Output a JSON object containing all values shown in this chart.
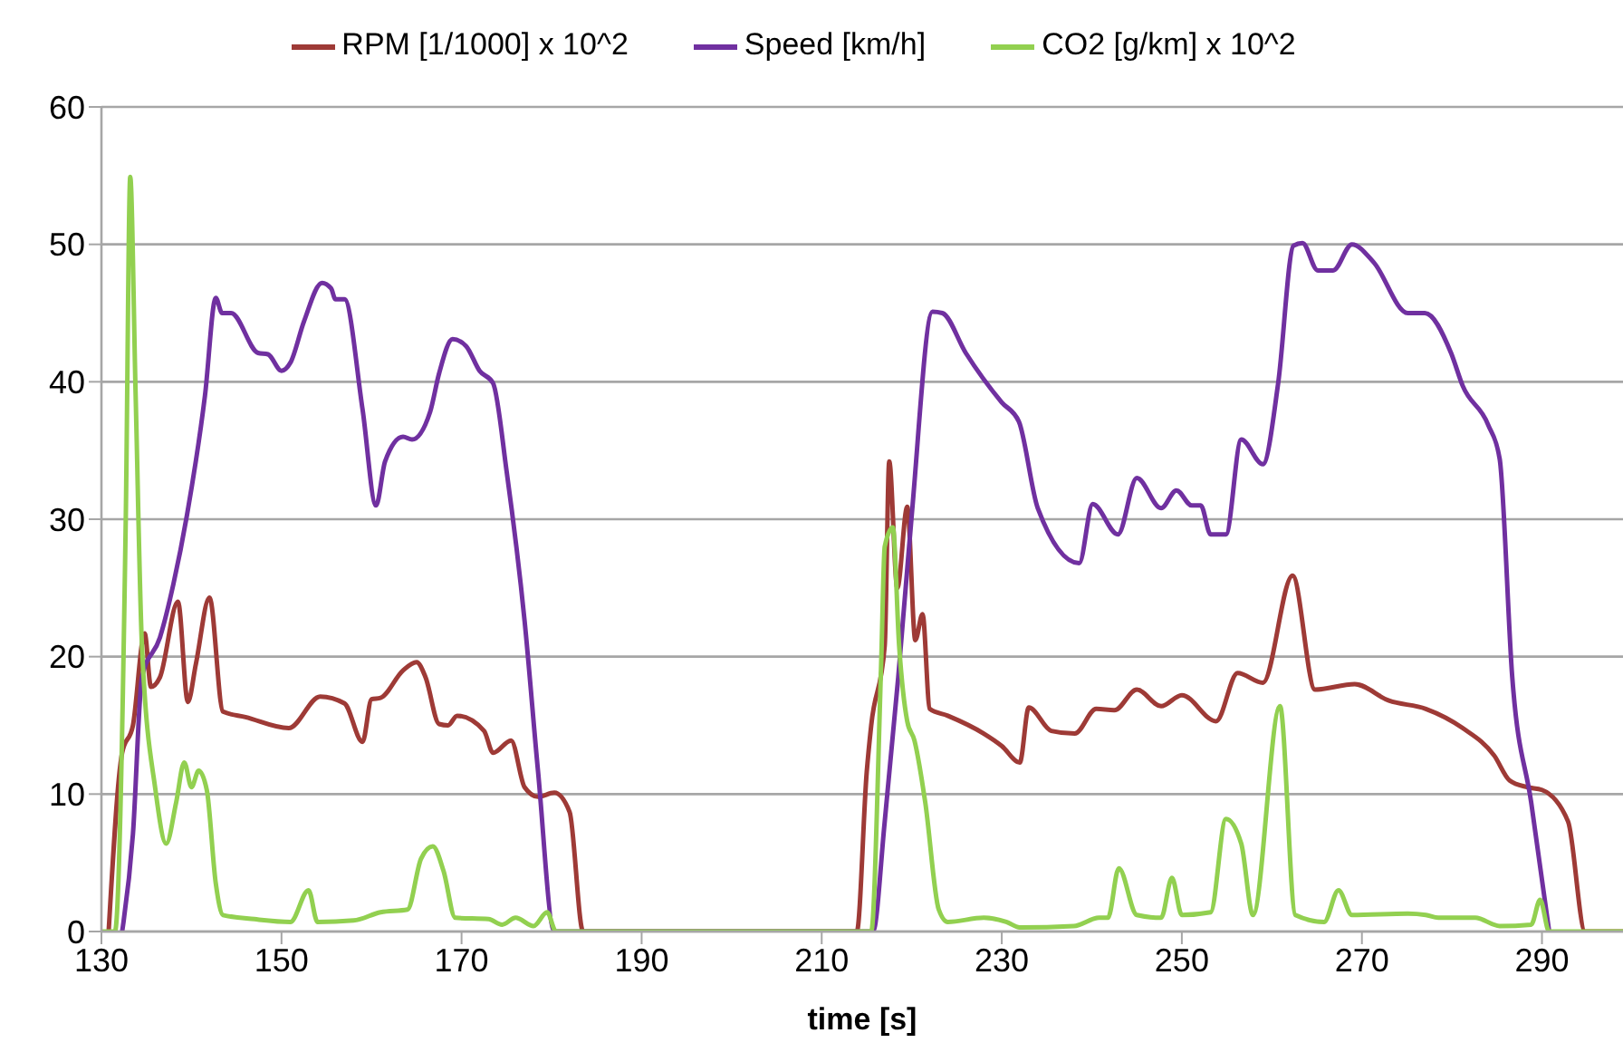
{
  "chart_data": {
    "type": "line",
    "xlabel": "time [s]",
    "xlim": [
      130,
      299
    ],
    "xticks": [
      130,
      150,
      170,
      190,
      210,
      230,
      250,
      270,
      290
    ],
    "ylim": [
      0,
      60
    ],
    "yticks": [
      0,
      10,
      20,
      30,
      40,
      50,
      60
    ],
    "grid": "y",
    "legend": "top",
    "marker": "none",
    "line_style": "solid",
    "series": [
      {
        "name": "RPM [1/1000] x 10^2",
        "color": "#9e3a36",
        "x": [
          130.8,
          132.3,
          133.5,
          134.8,
          135.5,
          136.5,
          138.5,
          139.6,
          140.5,
          142,
          143.5,
          146,
          150.8,
          154.3,
          157,
          159,
          160,
          161,
          163.5,
          165,
          166,
          167.5,
          168.5,
          169.5,
          172.5,
          173.5,
          175.5,
          177,
          178.5,
          180.3,
          182,
          183.5,
          213.9,
          215,
          215.5,
          217,
          217.5,
          218.4,
          219.5,
          220.4,
          221.2,
          222,
          224,
          228,
          230,
          232,
          233,
          235.5,
          238.1,
          240.5,
          242.5,
          245,
          247.7,
          250,
          253.8,
          256.2,
          259,
          262.3,
          264.8,
          269.2,
          273,
          277.1,
          281.2,
          284.7,
          286.4,
          288.4,
          290,
          292.9,
          294.8,
          299
        ],
        "values": [
          0,
          13,
          15,
          21.7,
          17.8,
          18.5,
          24,
          16.7,
          19.5,
          24.3,
          16,
          15.6,
          14.8,
          17.1,
          16.6,
          13.8,
          16.9,
          17,
          19,
          19.6,
          18.5,
          15.1,
          15,
          15.7,
          14.6,
          13,
          13.9,
          10.5,
          9.8,
          10.1,
          8.7,
          0,
          0,
          11.6,
          15,
          20.8,
          34.2,
          25,
          30.9,
          21.2,
          23.1,
          16.2,
          15.7,
          14.4,
          13.5,
          12.3,
          16.3,
          14.6,
          14.4,
          16.2,
          16.1,
          17.6,
          16.4,
          17.2,
          15.3,
          18.8,
          18.1,
          25.9,
          17.6,
          18,
          16.8,
          16.2,
          14.8,
          12.8,
          11,
          10.5,
          10.3,
          8,
          0,
          0
        ]
      },
      {
        "name": "Speed [km/h]",
        "color": "#7030a0",
        "x": [
          132.3,
          133.5,
          134.5,
          136.5,
          138,
          139.5,
          141.5,
          142.7,
          143.4,
          144.4,
          147.4,
          148.5,
          150,
          151,
          152.5,
          154.5,
          155.5,
          156,
          157,
          159,
          160.5,
          161.5,
          163.5,
          164.5,
          166.5,
          167.5,
          169,
          170.5,
          172,
          173.5,
          175,
          177,
          178.5,
          180.3,
          215.7,
          217,
          218.5,
          220,
          222.3,
          223.4,
          226,
          230,
          231.9,
          234,
          238.6,
          240.1,
          242.9,
          245,
          247.7,
          249.4,
          251.1,
          252.1,
          253.2,
          254.9,
          256.6,
          259,
          260.7,
          262.4,
          263.4,
          265.1,
          266.8,
          268.9,
          271.3,
          275.1,
          277,
          279.9,
          281.2,
          284,
          285.3,
          286.7,
          288.8,
          290.8
        ],
        "values": [
          0,
          7.1,
          18.5,
          21.4,
          25.3,
          30.3,
          39,
          46.1,
          45,
          45,
          42.1,
          42,
          40.8,
          41.4,
          44.4,
          47.2,
          46.8,
          46,
          46,
          38,
          31,
          34.2,
          36,
          35.8,
          37.8,
          40.6,
          43.1,
          42.6,
          40.8,
          39.9,
          33.5,
          22.6,
          11.6,
          0,
          0,
          8,
          18.5,
          30.3,
          45.1,
          45,
          42.1,
          38.5,
          37.1,
          30.8,
          26.8,
          31.1,
          28.9,
          33,
          30.8,
          32.1,
          31,
          31,
          28.9,
          28.9,
          35.8,
          34,
          39.9,
          49.9,
          50.1,
          48.1,
          48.1,
          50,
          48.7,
          45,
          45,
          42.1,
          39.7,
          36.9,
          34.4,
          18.5,
          9.4,
          0
        ]
      },
      {
        "name": "CO2 [g/km] x 10^2",
        "color": "#92d050",
        "x": [
          130,
          131.5,
          132.7,
          133.2,
          133.8,
          134.5,
          136,
          137.2,
          138.3,
          139.2,
          140,
          140.8,
          141.7,
          142.7,
          143.5,
          147,
          151,
          153,
          154,
          158,
          161,
          164,
          165.5,
          166.8,
          168,
          169.3,
          173,
          174.5,
          176,
          178,
          179.5,
          180.5,
          215.5,
          216.6,
          217,
          217.9,
          218.6,
          219.5,
          220.3,
          221.5,
          223,
          224,
          228,
          230.5,
          232,
          238,
          240.8,
          241.8,
          243,
          245,
          247.7,
          248.9,
          250,
          253.2,
          254.9,
          256.6,
          257.9,
          260.9,
          262.6,
          265.8,
          267.4,
          268.9,
          275.1,
          277.1,
          278.5,
          282.6,
          285.3,
          288.8,
          289.8,
          290.8,
          299
        ],
        "values": [
          0,
          0,
          29.9,
          54.9,
          39,
          20.8,
          10.3,
          6.4,
          9.4,
          12.3,
          10.5,
          11.7,
          10.3,
          3.5,
          1.2,
          0.9,
          0.7,
          3,
          0.7,
          0.8,
          1.4,
          1.6,
          5.3,
          6.2,
          4.4,
          1,
          0.9,
          0.5,
          1,
          0.4,
          1.4,
          0,
          0,
          19.4,
          28,
          29.4,
          20.8,
          15.3,
          13.9,
          9.4,
          1.6,
          0.7,
          1,
          0.7,
          0.3,
          0.4,
          1,
          1,
          4.6,
          1.2,
          1,
          3.9,
          1.2,
          1.4,
          8.2,
          6.4,
          1.2,
          16.4,
          1.2,
          0.7,
          3,
          1.2,
          1.3,
          1.2,
          1,
          1,
          0.4,
          0.5,
          2.3,
          0,
          0
        ]
      }
    ]
  }
}
